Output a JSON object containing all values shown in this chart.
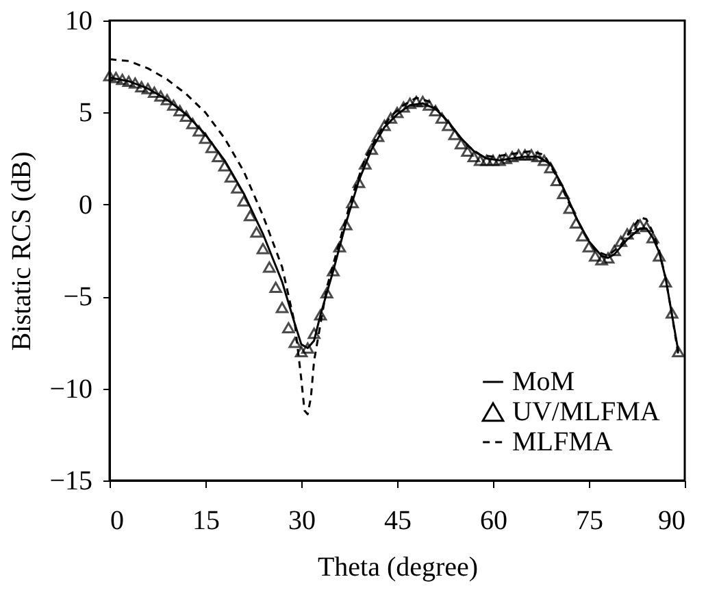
{
  "chart_data": {
    "type": "line",
    "xlabel": "Theta (degree)",
    "ylabel": "Bistatic RCS (dB)",
    "xlim": [
      0,
      90
    ],
    "xticks": [
      0,
      15,
      30,
      45,
      60,
      75,
      90
    ],
    "ylim": [
      -15,
      10
    ],
    "yticks": [
      -15,
      -10,
      -5,
      0,
      5,
      10
    ],
    "grid": false,
    "legend": "bottom right",
    "series": [
      {
        "name": "MoM",
        "color": "#000000",
        "line_style": "solid",
        "marker": "none",
        "x": [
          0,
          3,
          6,
          9,
          12,
          15,
          18,
          21,
          24,
          27,
          29,
          30,
          31,
          32,
          33,
          35,
          37,
          39,
          41,
          43,
          45,
          47,
          49,
          51,
          53,
          55,
          57,
          59,
          61,
          63,
          65,
          67,
          69,
          71,
          73,
          75,
          77,
          78,
          79,
          81,
          83,
          84,
          85,
          86,
          87,
          88,
          89
        ],
        "values": [
          6.9,
          6.7,
          6.3,
          5.7,
          4.9,
          3.8,
          2.4,
          0.6,
          -1.6,
          -4.2,
          -6.5,
          -7.6,
          -7.8,
          -7.4,
          -6.0,
          -3.6,
          -1.0,
          1.3,
          3.0,
          4.2,
          4.9,
          5.4,
          5.5,
          5.2,
          4.5,
          3.6,
          2.9,
          2.5,
          2.4,
          2.5,
          2.6,
          2.6,
          2.2,
          0.9,
          -0.7,
          -2.0,
          -2.8,
          -2.9,
          -2.7,
          -1.9,
          -1.3,
          -1.3,
          -1.8,
          -2.6,
          -4.0,
          -6.0,
          -8.0
        ]
      },
      {
        "name": "UV/MLFMA",
        "type": "scatter",
        "color": "#000000",
        "marker": "triangle",
        "x": [
          0,
          1,
          2,
          3,
          4,
          5,
          6,
          7,
          8,
          9,
          10,
          11,
          12,
          13,
          14,
          15,
          16,
          17,
          18,
          19,
          20,
          21,
          22,
          23,
          24,
          25,
          26,
          27,
          28,
          29,
          30,
          31,
          32,
          33,
          34,
          35,
          36,
          37,
          38,
          39,
          40,
          41,
          42,
          43,
          44,
          45,
          46,
          47,
          48,
          49,
          50,
          51,
          52,
          53,
          54,
          55,
          56,
          57,
          58,
          59,
          60,
          61,
          62,
          63,
          64,
          65,
          66,
          67,
          68,
          69,
          70,
          71,
          72,
          73,
          74,
          75,
          76,
          77,
          78,
          79,
          80,
          81,
          82,
          83,
          84,
          85,
          86,
          87,
          88,
          89
        ],
        "values": [
          7.0,
          6.9,
          6.8,
          6.7,
          6.6,
          6.4,
          6.3,
          6.1,
          5.9,
          5.7,
          5.4,
          5.1,
          4.8,
          4.4,
          4.0,
          3.6,
          3.1,
          2.6,
          2.1,
          1.5,
          0.9,
          0.2,
          -0.6,
          -1.5,
          -2.4,
          -3.4,
          -4.5,
          -5.6,
          -6.7,
          -7.5,
          -8.0,
          -7.8,
          -7.0,
          -6.0,
          -4.8,
          -3.6,
          -2.3,
          -1.1,
          0.1,
          1.2,
          2.2,
          3.0,
          3.7,
          4.3,
          4.7,
          5.0,
          5.3,
          5.5,
          5.6,
          5.6,
          5.4,
          5.1,
          4.7,
          4.3,
          3.8,
          3.3,
          2.9,
          2.6,
          2.4,
          2.4,
          2.4,
          2.4,
          2.5,
          2.6,
          2.7,
          2.7,
          2.7,
          2.6,
          2.4,
          2.0,
          1.3,
          0.6,
          -0.2,
          -1.0,
          -1.7,
          -2.3,
          -2.8,
          -3.0,
          -2.9,
          -2.5,
          -2.0,
          -1.6,
          -1.3,
          -1.1,
          -1.2,
          -1.8,
          -2.8,
          -4.2,
          -5.9,
          -8.0
        ]
      },
      {
        "name": "MLFMA",
        "color": "#000000",
        "line_style": "dashed",
        "marker": "none",
        "x": [
          0,
          3,
          6,
          9,
          12,
          15,
          18,
          21,
          24,
          27,
          29,
          30,
          30.5,
          31,
          31.5,
          32,
          33,
          34,
          36,
          38,
          40,
          42,
          44,
          46,
          48,
          50,
          52,
          54,
          56,
          58,
          60,
          62,
          64,
          66,
          68,
          70,
          72,
          74,
          76,
          78,
          80,
          82,
          83,
          84,
          85,
          86,
          87,
          88,
          89
        ],
        "values": [
          7.9,
          7.8,
          7.4,
          6.8,
          6.0,
          5.0,
          3.6,
          1.8,
          -0.6,
          -3.4,
          -6.5,
          -9.5,
          -11.2,
          -11.4,
          -10.5,
          -8.5,
          -6.5,
          -4.5,
          -2.0,
          0.5,
          2.5,
          3.8,
          4.8,
          5.4,
          5.8,
          5.6,
          4.9,
          4.0,
          3.2,
          2.7,
          2.6,
          2.7,
          2.8,
          2.9,
          2.7,
          1.5,
          0.0,
          -1.4,
          -2.5,
          -2.8,
          -2.2,
          -1.2,
          -0.7,
          -0.8,
          -1.5,
          -2.5,
          -4.0,
          -6.0,
          -8.2
        ]
      }
    ]
  }
}
